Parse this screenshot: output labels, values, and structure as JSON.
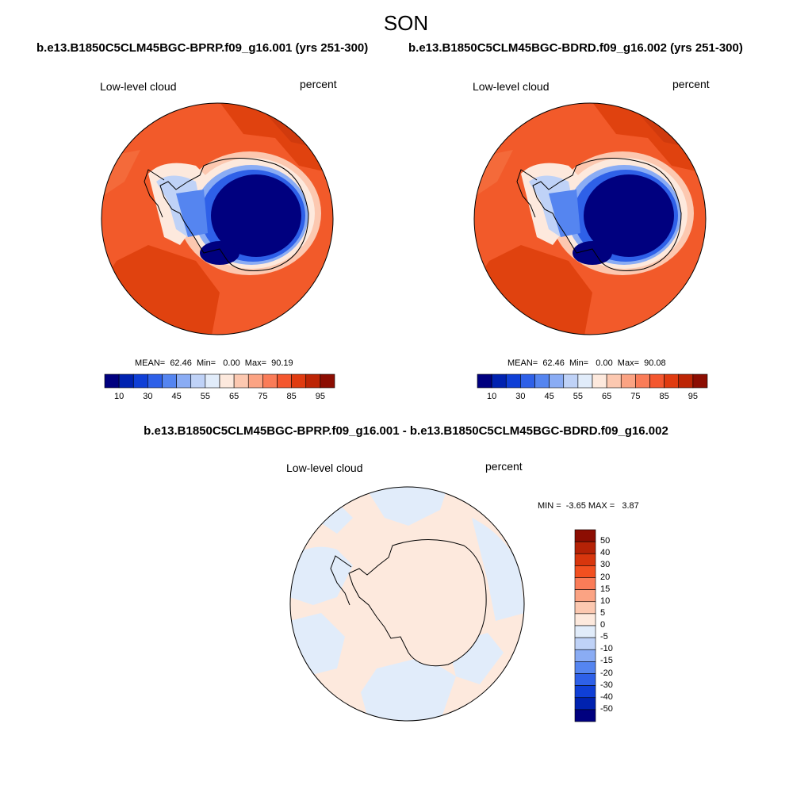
{
  "title": "SON",
  "panels": [
    {
      "case": "b.e13.B1850C5CLM45BGC-BPRP.f09_g16.001 (yrs 251-300)",
      "variable": "Low-level cloud",
      "units": "percent",
      "stats": "MEAN=  62.46  Min=   0.00  Max=  90.19"
    },
    {
      "case": "b.e13.B1850C5CLM45BGC-BDRD.f09_g16.002 (yrs 251-300)",
      "variable": "Low-level cloud",
      "units": "percent",
      "stats": "MEAN=  62.46  Min=   0.00  Max=  90.08"
    }
  ],
  "colorbar_top": {
    "labels": [
      "10",
      "30",
      "45",
      "55",
      "65",
      "75",
      "85",
      "95"
    ],
    "colors": [
      "#00007f",
      "#0022b0",
      "#0f3fd6",
      "#2e60e8",
      "#5585f0",
      "#8aacf4",
      "#bfd2f7",
      "#e1ecfa",
      "#fde9dd",
      "#fcc8b0",
      "#fba383",
      "#fa7c58",
      "#f4572f",
      "#e03b10",
      "#bd2505",
      "#8c0d02"
    ]
  },
  "diff": {
    "title": "b.e13.B1850C5CLM45BGC-BPRP.f09_g16.001 - b.e13.B1850C5CLM45BGC-BDRD.f09_g16.002",
    "variable": "Low-level cloud",
    "units": "percent",
    "stats": "MIN =  -3.65 MAX =   3.87",
    "colorbar_labels": [
      "50",
      "40",
      "30",
      "20",
      "15",
      "10",
      "5",
      "0",
      "-5",
      "-10",
      "-15",
      "-20",
      "-30",
      "-40",
      "-50"
    ],
    "colorbar_colors": [
      "#8c0d02",
      "#b52206",
      "#d8360d",
      "#f25020",
      "#fa7c58",
      "#fba383",
      "#fcc8b0",
      "#fde9dd",
      "#e1ecfa",
      "#bfd2f7",
      "#8aacf4",
      "#5585f0",
      "#2e60e8",
      "#0f3fd6",
      "#0022b0",
      "#00007f"
    ]
  }
}
